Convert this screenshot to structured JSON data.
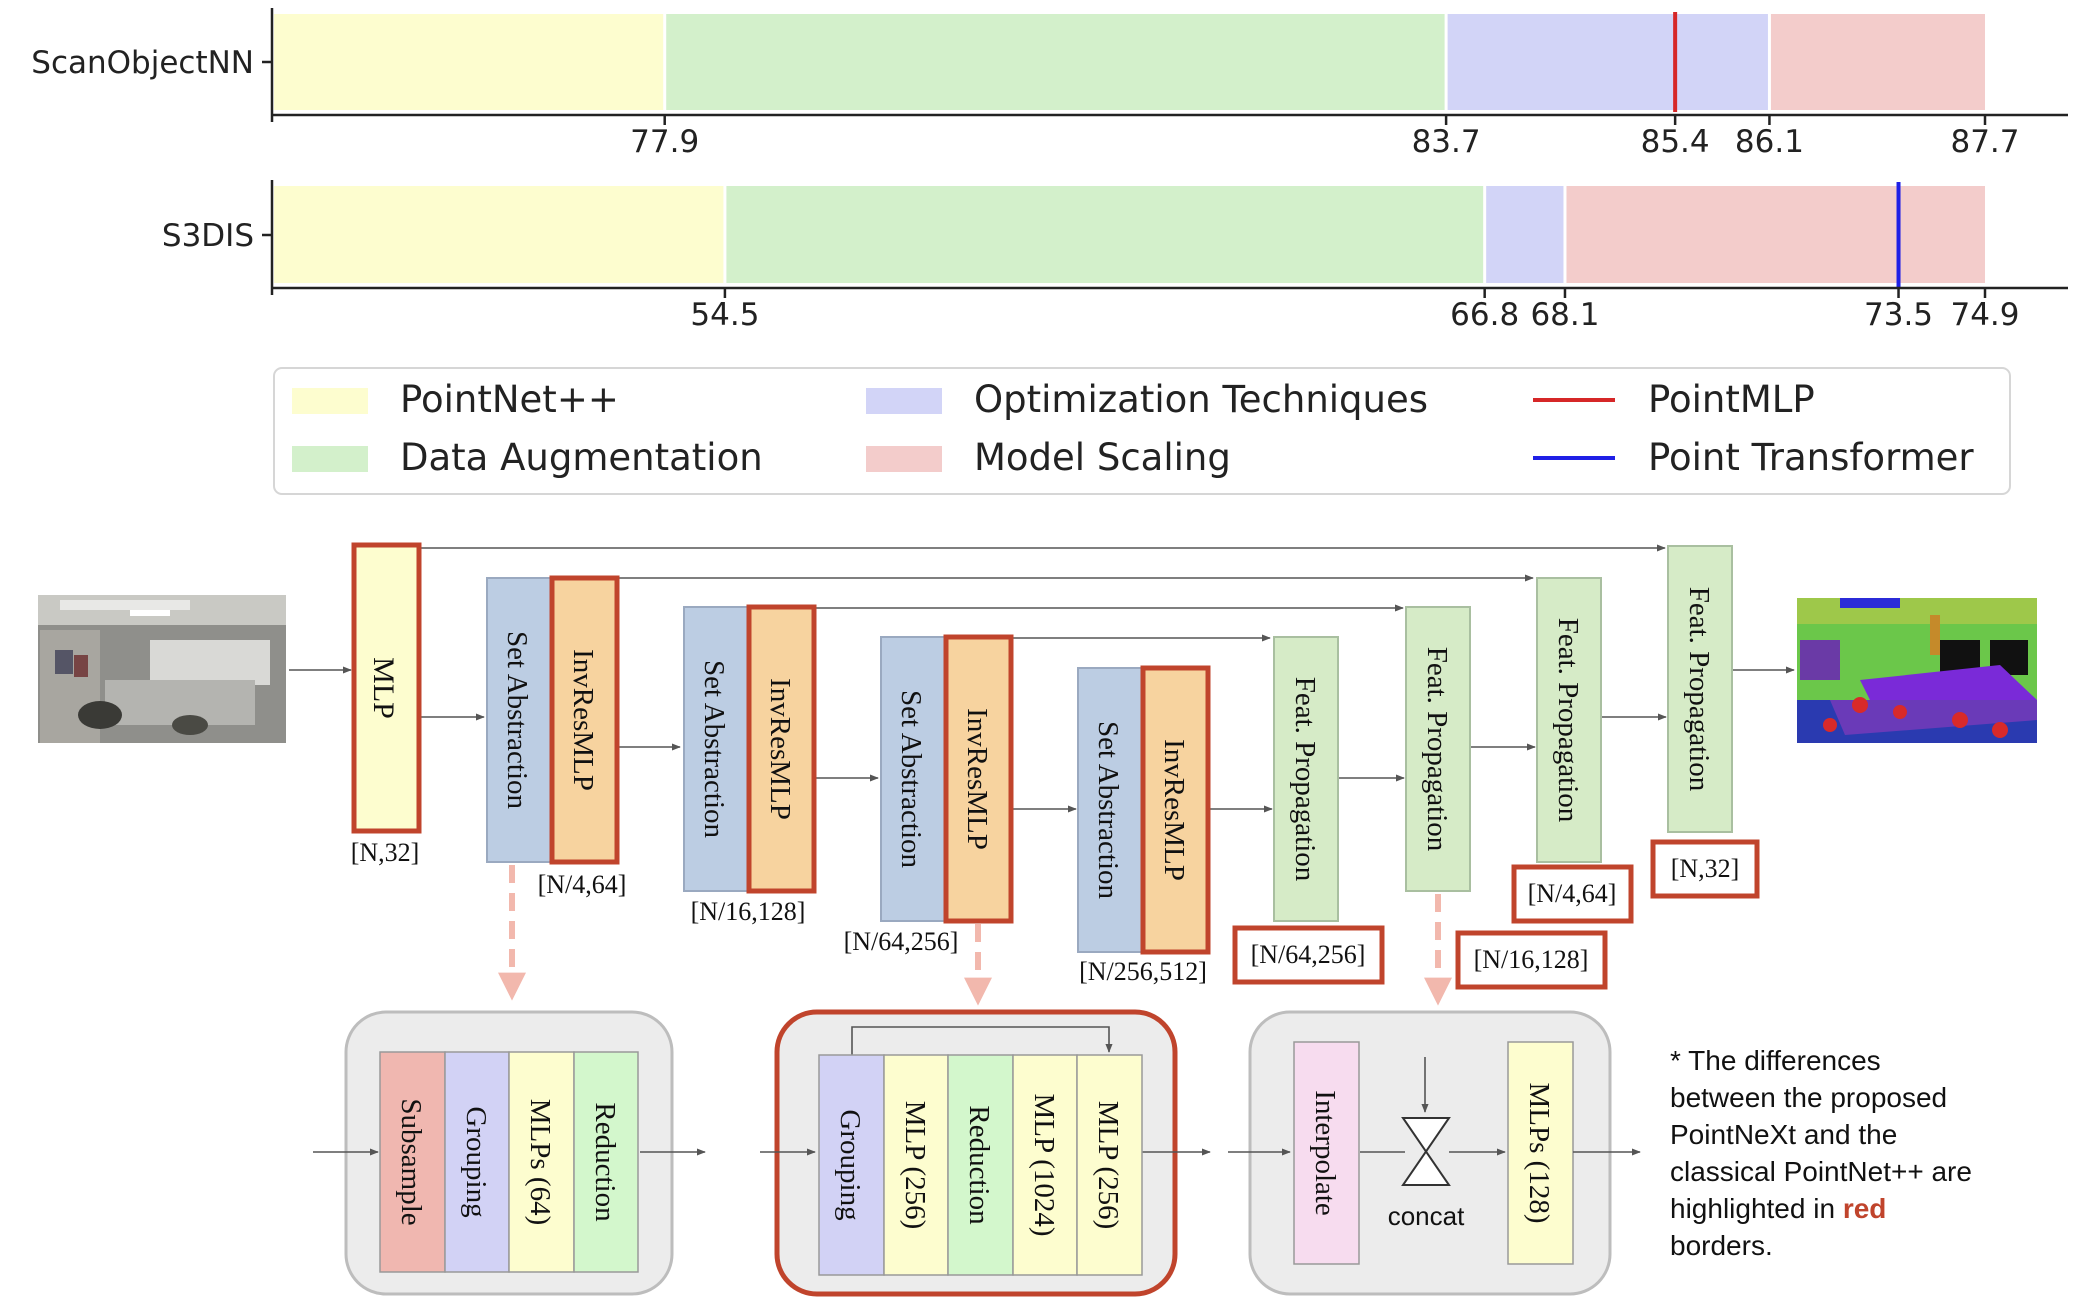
{
  "chart_data": [
    {
      "type": "bar",
      "category": "ScanObjectNN",
      "ticks": [
        "77.9",
        "83.7",
        "85.4",
        "86.1",
        "87.7"
      ],
      "segments": [
        {
          "stage": "PointNet++",
          "from": 75.0,
          "to": 77.9,
          "color": "#fdfdcf"
        },
        {
          "stage": "Data Augmentation",
          "from": 77.9,
          "to": 83.7,
          "color": "#d3f0cb"
        },
        {
          "stage": "Optimization Techniques",
          "from": 83.7,
          "to": 86.1,
          "color": "#d2d4f7"
        },
        {
          "stage": "Model Scaling",
          "from": 86.1,
          "to": 87.7,
          "color": "#f3cccb"
        }
      ],
      "reference_line": {
        "name": "PointMLP",
        "value": 85.4,
        "color": "#d62728"
      }
    },
    {
      "type": "bar",
      "category": "S3DIS",
      "ticks": [
        "54.5",
        "66.8",
        "68.1",
        "73.5",
        "74.9"
      ],
      "segments": [
        {
          "stage": "PointNet++",
          "from": 47.2,
          "to": 54.5,
          "color": "#fdfdcf"
        },
        {
          "stage": "Data Augmentation",
          "from": 54.5,
          "to": 66.8,
          "color": "#d3f0cb"
        },
        {
          "stage": "Optimization Techniques",
          "from": 66.8,
          "to": 68.1,
          "color": "#d2d4f7"
        },
        {
          "stage": "Model Scaling",
          "from": 68.1,
          "to": 74.9,
          "color": "#f3cccb"
        }
      ],
      "reference_line": {
        "name": "Point Transformer",
        "value": 73.5,
        "color": "#1f1fe6"
      }
    }
  ],
  "legend": [
    {
      "label": "PointNet++",
      "kind": "patch",
      "color": "#fdfdcf"
    },
    {
      "label": "Optimization Techniques",
      "kind": "patch",
      "color": "#d2d4f7"
    },
    {
      "label": "PointMLP",
      "kind": "line",
      "color": "#d62728"
    },
    {
      "label": "Data Augmentation",
      "kind": "patch",
      "color": "#d3f0cb"
    },
    {
      "label": "Model Scaling",
      "kind": "patch",
      "color": "#f3cccb"
    },
    {
      "label": "Point Transformer",
      "kind": "line",
      "color": "#1f1fe6"
    }
  ],
  "diagram": {
    "blocks": {
      "mlp": "MLP",
      "set_abstraction": "Set Abstraction",
      "invresmlp": "InvResMLP",
      "feat_propagation": "Feat. Propagation"
    },
    "shapes": {
      "mlp": "[N,32]",
      "enc1": "[N/4,64]",
      "enc2": "[N/16,128]",
      "enc3": "[N/64,256]",
      "enc4": "[N/256,512]",
      "dec1": "[N/64,256]",
      "dec2": "[N/16,128]",
      "dec3": "[N/4,64]",
      "dec4": "[N,32]"
    },
    "sa_module": [
      "Subsample",
      "Grouping",
      "MLPs (64)",
      "Reduction"
    ],
    "invres_module": [
      "Grouping",
      "MLP (256)",
      "Reduction",
      "MLP (1024)",
      "MLP (256)"
    ],
    "fp_module": {
      "interpolate": "Interpolate",
      "concat": "concat",
      "mlps": "MLPs (128)"
    },
    "note": {
      "lines": [
        "* The differences",
        "between the proposed",
        "PointNeXt and the",
        "classical PointNet++ are"
      ],
      "last_prefix": "highlighted in ",
      "highlight": "red",
      "final": "borders."
    },
    "colors": {
      "orange_border": "#c0442c",
      "sa_fill": "#bccde3",
      "invres_fill": "#f7d39f",
      "mlp_fill": "#fdfdcf",
      "fp_fill": "#d6ebc7",
      "red_module": "#f0b7b0",
      "purple_module": "#d2d2f5",
      "green_module": "#d3f7cc",
      "pink_module": "#f7dcef",
      "module_bg": "#ececec"
    },
    "input_image": "indoor-scene-photo",
    "output_image": "segmentation-result"
  }
}
